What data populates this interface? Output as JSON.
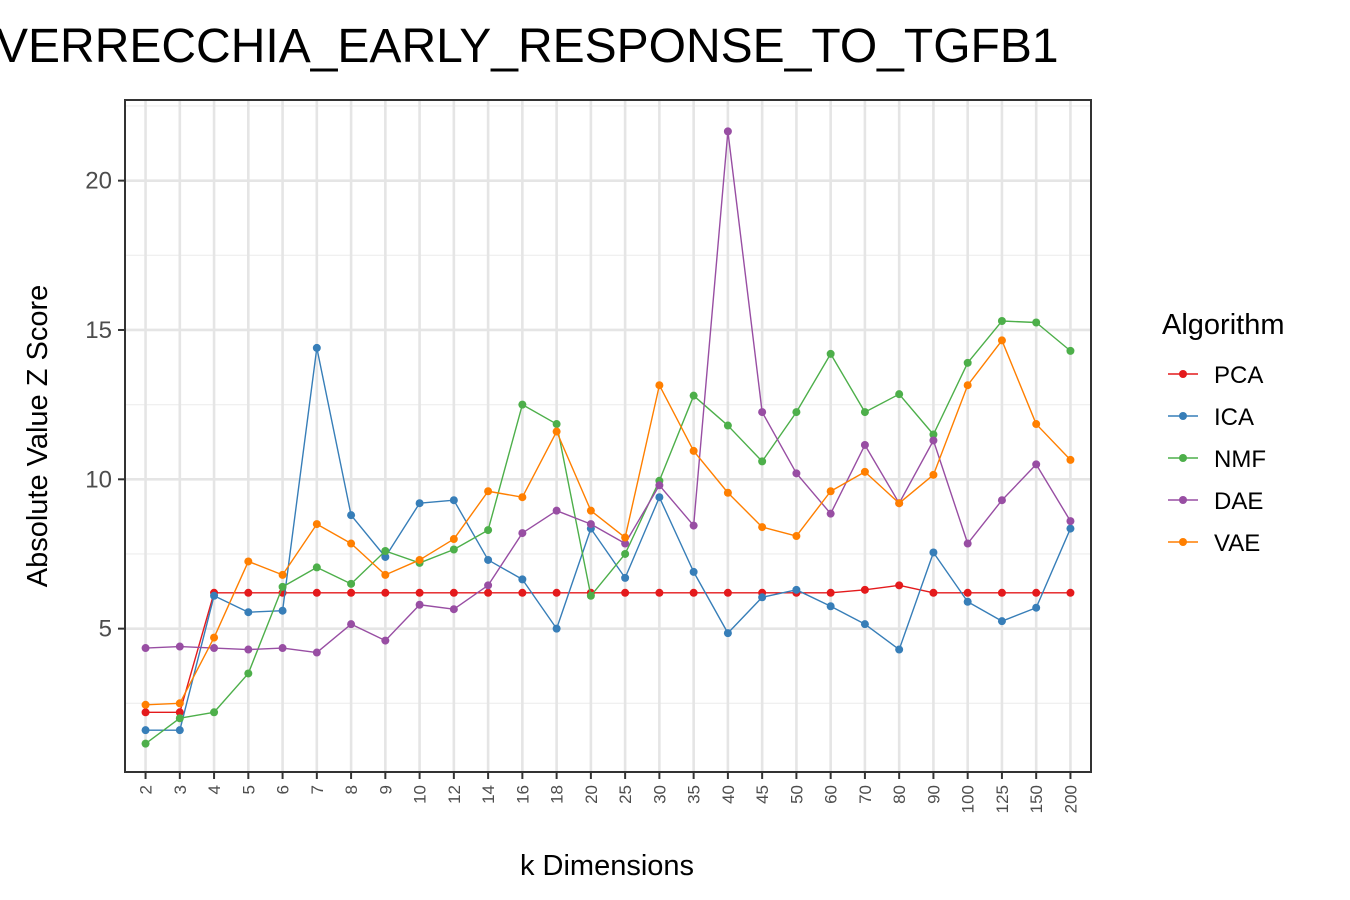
{
  "chart_data": {
    "type": "line",
    "title": "VERRECCHIA_EARLY_RESPONSE_TO_TGFB1",
    "xlabel": "k Dimensions",
    "ylabel": "Absolute Value Z Score",
    "categories": [
      "2",
      "3",
      "4",
      "5",
      "6",
      "7",
      "8",
      "9",
      "10",
      "12",
      "14",
      "16",
      "18",
      "20",
      "25",
      "30",
      "35",
      "40",
      "45",
      "50",
      "60",
      "70",
      "80",
      "90",
      "100",
      "125",
      "150",
      "200"
    ],
    "ylim": [
      0.2,
      22.7
    ],
    "yticks": [
      5,
      10,
      15,
      20
    ],
    "grid": true,
    "legend_title": "Algorithm",
    "legend_position": "right",
    "series": [
      {
        "name": "PCA",
        "color": "#E41A1C",
        "values": [
          2.2,
          2.2,
          6.2,
          6.2,
          6.2,
          6.2,
          6.2,
          6.2,
          6.2,
          6.2,
          6.2,
          6.2,
          6.2,
          6.2,
          6.2,
          6.2,
          6.2,
          6.2,
          6.2,
          6.2,
          6.2,
          6.3,
          6.45,
          6.2,
          6.2,
          6.2,
          6.2,
          6.2
        ]
      },
      {
        "name": "ICA",
        "color": "#377EB8",
        "values": [
          1.6,
          1.6,
          6.1,
          5.55,
          5.6,
          14.4,
          8.8,
          7.4,
          9.2,
          9.3,
          7.3,
          6.65,
          5.0,
          8.35,
          6.7,
          9.4,
          6.9,
          4.85,
          6.05,
          6.3,
          5.75,
          5.15,
          4.3,
          7.55,
          5.9,
          5.25,
          5.7,
          8.35
        ]
      },
      {
        "name": "NMF",
        "color": "#4DAF4A",
        "values": [
          1.15,
          2.0,
          2.2,
          3.5,
          6.4,
          7.05,
          6.5,
          7.6,
          7.2,
          7.65,
          8.3,
          12.5,
          11.85,
          6.1,
          7.5,
          9.95,
          12.8,
          11.8,
          10.6,
          12.25,
          14.2,
          12.25,
          12.85,
          11.5,
          13.9,
          15.3,
          15.25,
          14.3
        ]
      },
      {
        "name": "DAE",
        "color": "#984EA3",
        "values": [
          4.35,
          4.4,
          4.35,
          4.3,
          4.35,
          4.2,
          5.15,
          4.6,
          5.8,
          5.65,
          6.45,
          8.2,
          8.95,
          8.5,
          7.85,
          9.8,
          8.45,
          21.65,
          12.25,
          10.2,
          8.85,
          11.15,
          9.2,
          11.3,
          7.85,
          9.3,
          10.5,
          8.6
        ]
      },
      {
        "name": "VAE",
        "color": "#FF7F00",
        "values": [
          2.45,
          2.5,
          4.7,
          7.25,
          6.8,
          8.5,
          7.85,
          6.8,
          7.3,
          8.0,
          9.6,
          9.4,
          11.6,
          8.95,
          8.05,
          13.15,
          10.95,
          9.55,
          8.4,
          8.1,
          9.6,
          10.25,
          9.2,
          10.15,
          13.15,
          14.65,
          11.85,
          10.65
        ]
      }
    ]
  }
}
